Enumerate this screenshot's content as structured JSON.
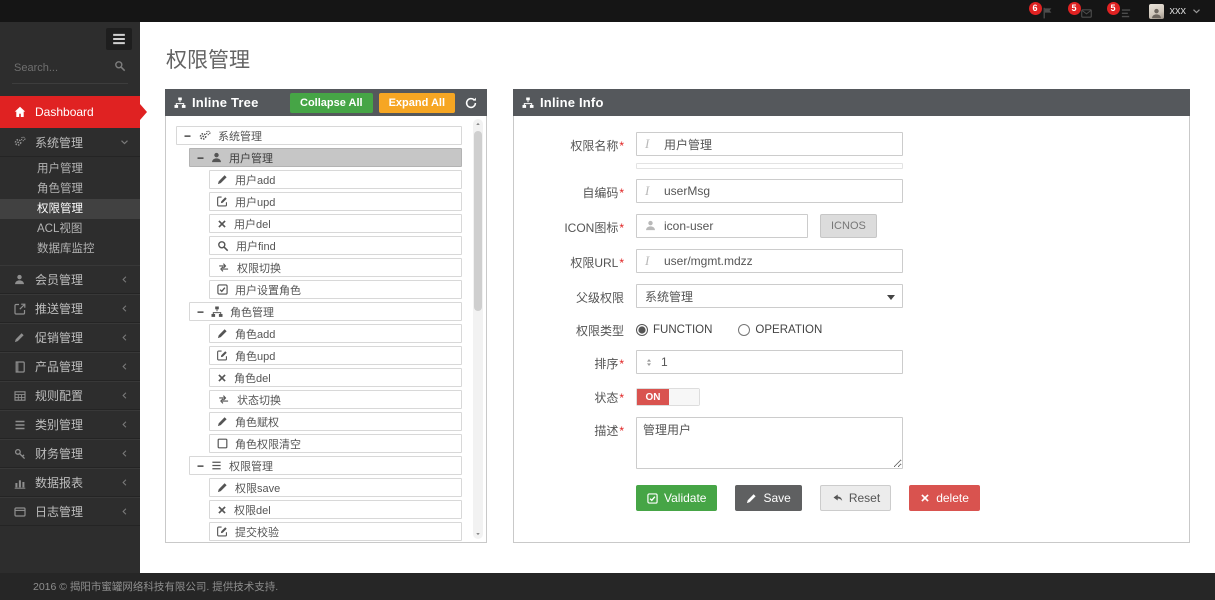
{
  "topbar": {
    "notifications": [
      {
        "icon": "flag",
        "count": "6"
      },
      {
        "icon": "envelope",
        "count": "5"
      },
      {
        "icon": "tasks",
        "count": "5"
      }
    ],
    "user": {
      "name": "xxx"
    }
  },
  "sidebar": {
    "search_placeholder": "Search...",
    "dashboard_label": "Dashboard",
    "sections": [
      {
        "key": "system",
        "icon": "cogs",
        "label": "系统管理",
        "expanded": true,
        "children": [
          {
            "label": "用户管理",
            "active": false
          },
          {
            "label": "角色管理",
            "active": false
          },
          {
            "label": "权限管理",
            "active": true
          },
          {
            "label": "ACL视图",
            "active": false
          },
          {
            "label": "数据库监控",
            "active": false
          }
        ]
      },
      {
        "key": "member",
        "icon": "user",
        "label": "会员管理"
      },
      {
        "key": "push",
        "icon": "share",
        "label": "推送管理"
      },
      {
        "key": "promo",
        "icon": "pencil",
        "label": "促销管理"
      },
      {
        "key": "product",
        "icon": "book",
        "label": "产品管理"
      },
      {
        "key": "rules",
        "icon": "table",
        "label": "规则配置"
      },
      {
        "key": "category",
        "icon": "bars",
        "label": "类别管理"
      },
      {
        "key": "finance",
        "icon": "key",
        "label": "财务管理"
      },
      {
        "key": "report",
        "icon": "chart",
        "label": "数据报表"
      },
      {
        "key": "log",
        "icon": "window",
        "label": "日志管理"
      }
    ]
  },
  "page": {
    "title": "权限管理"
  },
  "tree_panel": {
    "title": "Inline Tree",
    "collapse_all": "Collapse All",
    "expand_all": "Expand All",
    "rows": [
      {
        "depth": 0,
        "icon": "cogs",
        "label": "系统管理",
        "parent": true
      },
      {
        "depth": 1,
        "icon": "user",
        "label": "用户管理",
        "parent": true,
        "selected": true
      },
      {
        "depth": 2,
        "icon": "pencil",
        "label": "用户add"
      },
      {
        "depth": 2,
        "icon": "edit",
        "label": "用户upd"
      },
      {
        "depth": 2,
        "icon": "x",
        "label": "用户del"
      },
      {
        "depth": 2,
        "icon": "search",
        "label": "用户find"
      },
      {
        "depth": 2,
        "icon": "retweet",
        "label": "权限切换"
      },
      {
        "depth": 2,
        "icon": "check-square",
        "label": "用户设置角色"
      },
      {
        "depth": 1,
        "icon": "sitemap",
        "label": "角色管理",
        "parent": true
      },
      {
        "depth": 2,
        "icon": "pencil",
        "label": "角色add"
      },
      {
        "depth": 2,
        "icon": "edit",
        "label": "角色upd"
      },
      {
        "depth": 2,
        "icon": "x",
        "label": "角色del"
      },
      {
        "depth": 2,
        "icon": "retweet",
        "label": "状态切换"
      },
      {
        "depth": 2,
        "icon": "pencil",
        "label": "角色赋权"
      },
      {
        "depth": 2,
        "icon": "square",
        "label": "角色权限清空"
      },
      {
        "depth": 1,
        "icon": "list",
        "label": "权限管理",
        "parent": true
      },
      {
        "depth": 2,
        "icon": "pencil",
        "label": "权限save"
      },
      {
        "depth": 2,
        "icon": "x",
        "label": "权限del"
      },
      {
        "depth": 2,
        "icon": "edit",
        "label": "提交校验"
      }
    ]
  },
  "info_panel": {
    "title": "Inline Info",
    "fields": {
      "name": {
        "label": "权限名称",
        "required": "*",
        "value": "用户管理"
      },
      "code": {
        "label": "自编码",
        "required": "*",
        "value": "userMsg"
      },
      "icon": {
        "label": "ICON图标",
        "required": "*",
        "value": "icon-user",
        "button": "ICNOS"
      },
      "url": {
        "label": "权限URL",
        "required": "*",
        "value": "user/mgmt.mdzz"
      },
      "parent": {
        "label": "父级权限",
        "value": "系统管理"
      },
      "type": {
        "label": "权限类型",
        "options": [
          {
            "label": "FUNCTION",
            "checked": true
          },
          {
            "label": "OPERATION",
            "checked": false
          }
        ]
      },
      "sort": {
        "label": "排序",
        "required": "*",
        "value": "1"
      },
      "status": {
        "label": "状态",
        "required": "*",
        "value": "ON"
      },
      "desc": {
        "label": "描述",
        "required": "*",
        "value": "管理用户"
      }
    },
    "buttons": {
      "validate": "Validate",
      "save": "Save",
      "reset": "Reset",
      "delete": "delete"
    }
  },
  "footer": {
    "copyright": "2016 © 揭阳市蜜罐网络科技有限公司. 提供技术支持."
  },
  "colors": {
    "accent_red": "#e02222",
    "green": "#46a546",
    "orange": "#f6a623",
    "danger_red": "#d9534f",
    "save_gray": "#5f6061",
    "panel_header": "#55585c"
  }
}
